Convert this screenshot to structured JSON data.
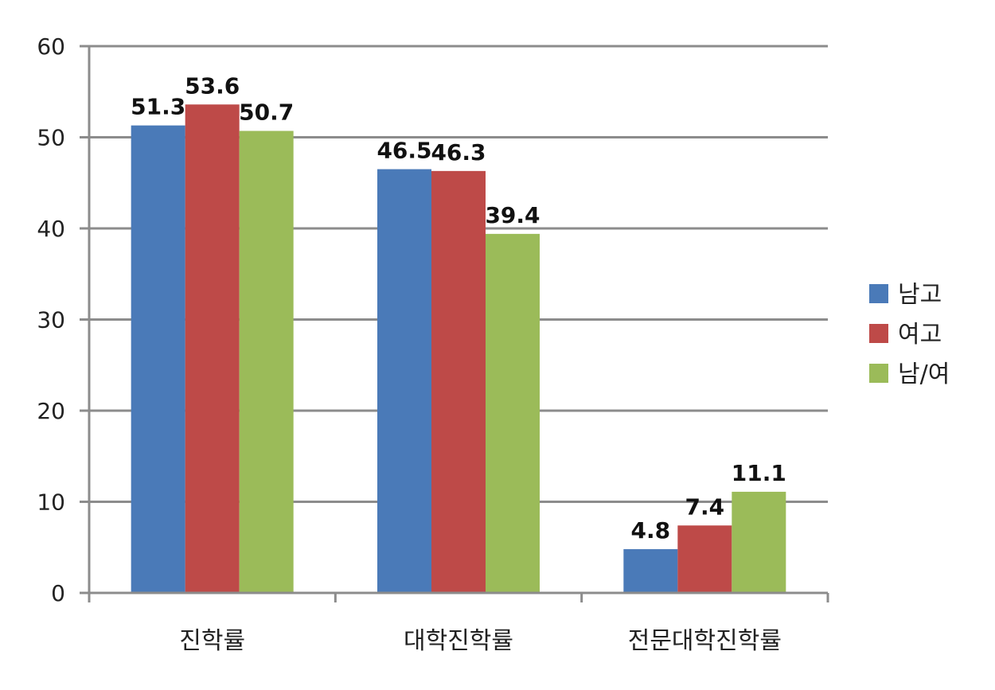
{
  "chart_data": {
    "type": "bar",
    "categories": [
      "진학률",
      "대학진학률",
      "전문대학진학률"
    ],
    "series": [
      {
        "name": "남고",
        "color": "#4a7ab8",
        "values": [
          51.3,
          46.5,
          4.8
        ]
      },
      {
        "name": "여고",
        "color": "#be4a48",
        "values": [
          53.6,
          46.3,
          7.4
        ]
      },
      {
        "name": "남/여",
        "color": "#9bbb59",
        "values": [
          50.7,
          39.4,
          11.1
        ]
      }
    ],
    "y_ticks": [
      "0",
      "10",
      "20",
      "30",
      "40",
      "50",
      "60"
    ],
    "ylim": [
      0,
      60
    ],
    "grid": true,
    "legend_position": "right"
  }
}
